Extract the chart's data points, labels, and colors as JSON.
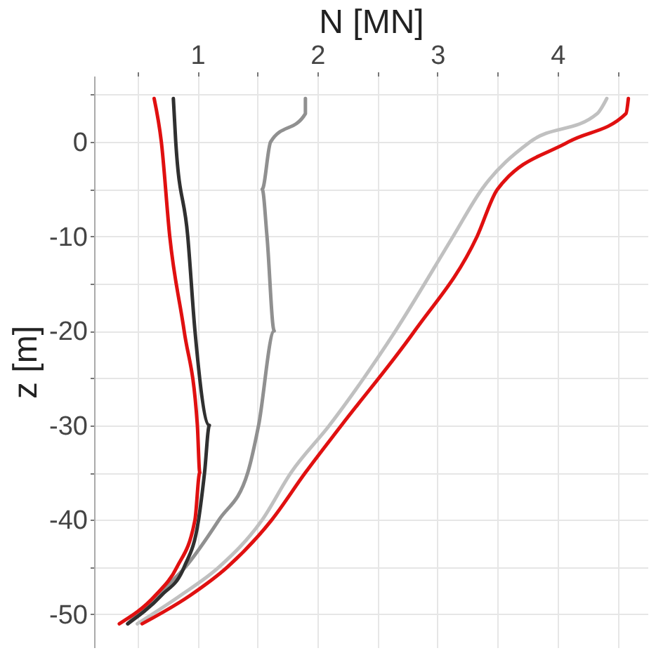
{
  "chart_data": {
    "type": "line",
    "xlabel": "N [MN]",
    "ylabel": "z [m]",
    "xlim": [
      0.14,
      4.75
    ],
    "ylim": [
      -53.5,
      7
    ],
    "xticks": [
      {
        "value": 0.5,
        "label": null
      },
      1,
      {
        "value": 1.5,
        "label": null
      },
      2,
      {
        "value": 2.5,
        "label": null
      },
      3,
      {
        "value": 3.5,
        "label": null
      },
      4,
      {
        "value": 4.5,
        "label": null
      }
    ],
    "yticks": [
      {
        "value": -50,
        "label": "-50"
      },
      {
        "value": -45,
        "label": null
      },
      {
        "value": -40,
        "label": "-40"
      },
      {
        "value": -35,
        "label": null
      },
      {
        "value": -30,
        "label": "-30"
      },
      {
        "value": -25,
        "label": null
      },
      {
        "value": -20,
        "label": "-20"
      },
      {
        "value": -15,
        "label": null
      },
      {
        "value": -10,
        "label": "-10"
      },
      {
        "value": -5,
        "label": null
      },
      0,
      {
        "value": 5,
        "label": null
      }
    ],
    "grid": true,
    "legend": false,
    "line_style": "solid",
    "marker": "none",
    "series": [
      {
        "color": "#c0c0c0",
        "x": [
          4.41,
          4.33,
          3.77,
          3.37,
          3.13,
          2.65,
          2.1,
          1.78,
          1.54,
          1.18,
          0.86,
          0.5
        ],
        "values": [
          4.6,
          3,
          0,
          -5,
          -10,
          -20,
          -30,
          -35,
          -40,
          -45,
          -48,
          -51
        ]
      },
      {
        "color": "#e01010",
        "x": [
          4.59,
          4.57,
          4.09,
          3.5,
          3.33,
          2.81,
          2.2,
          1.9,
          1.62,
          1.25,
          0.94,
          0.54
        ],
        "values": [
          4.6,
          3,
          0,
          -5,
          -10,
          -20,
          -30,
          -35,
          -40,
          -45,
          -48,
          -51
        ]
      },
      {
        "color": "#909090",
        "x": [
          1.9,
          1.9,
          1.61,
          1.54,
          1.58,
          1.64,
          1.51,
          1.42,
          1.18,
          0.9,
          0.66,
          0.42
        ],
        "values": [
          4.6,
          3,
          0,
          -5,
          -10,
          -20,
          -30,
          -35,
          -40,
          -45,
          -48,
          -51
        ]
      },
      {
        "color": "#303030",
        "x": [
          0.8,
          0.82,
          0.92,
          0.98,
          1.1,
          1.06,
          1.01,
          0.89,
          0.7,
          0.42
        ],
        "values": [
          4.6,
          0,
          -10,
          -20,
          -30,
          -35,
          -40,
          -45,
          -48,
          -51
        ]
      },
      {
        "color": "#e01010",
        "x": [
          0.64,
          0.7,
          0.77,
          0.89,
          1.0,
          1.02,
          0.98,
          0.83,
          0.65,
          0.35
        ],
        "values": [
          4.6,
          0,
          -10,
          -20,
          -30,
          -35,
          -40,
          -45,
          -48,
          -51
        ]
      }
    ]
  }
}
